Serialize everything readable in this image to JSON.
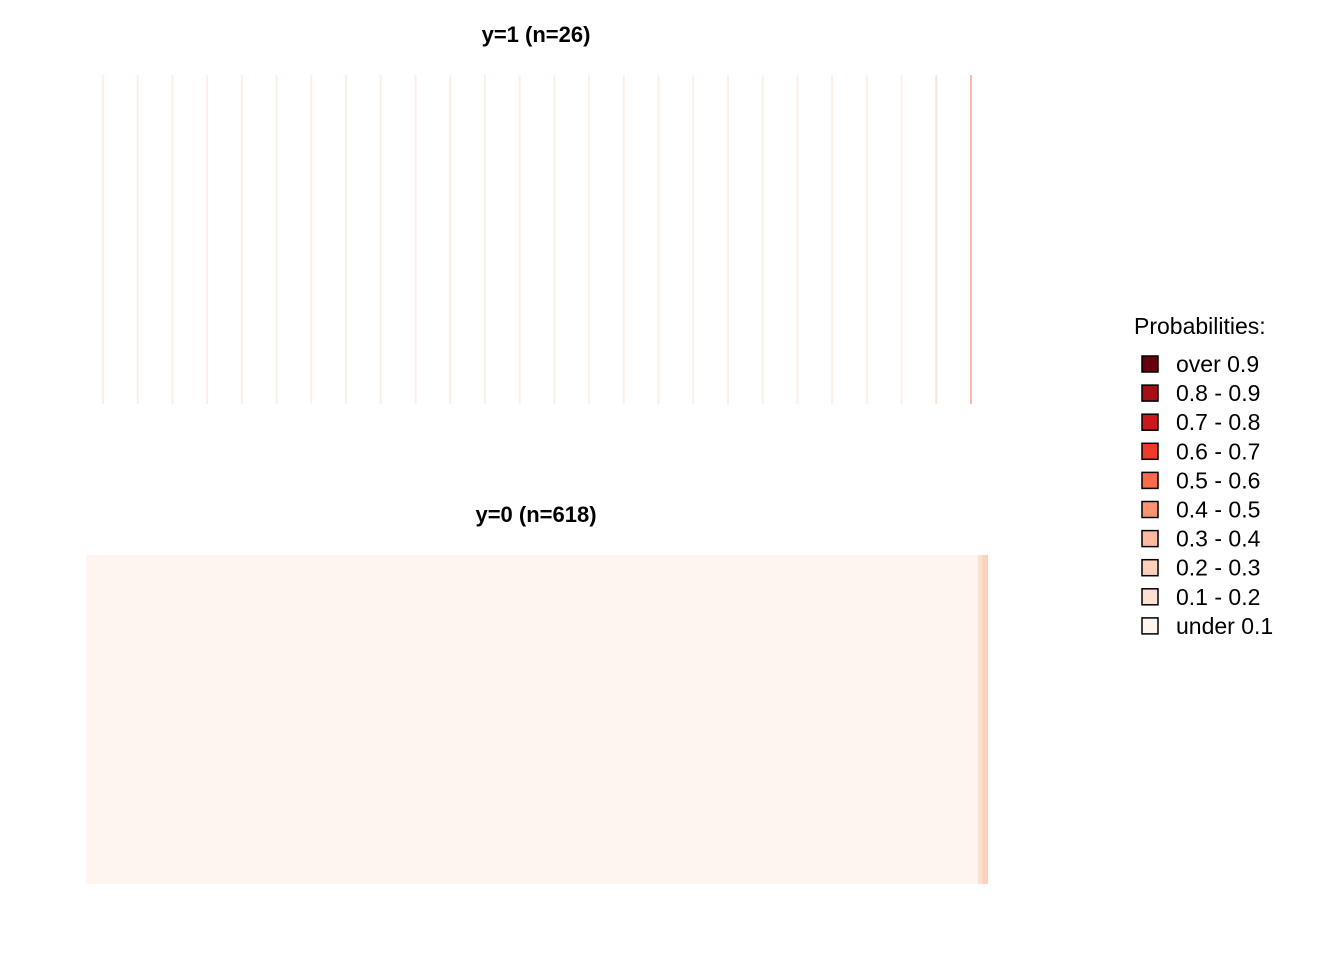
{
  "chart_data": [
    {
      "type": "heatmap",
      "title": "y=1 (n=26)",
      "n": 26,
      "probability_bins": [
        "under 0.1",
        "under 0.1",
        "under 0.1",
        "under 0.1",
        "under 0.1",
        "under 0.1",
        "under 0.1",
        "under 0.1",
        "under 0.1",
        "under 0.1",
        "under 0.1",
        "under 0.1",
        "under 0.1",
        "under 0.1",
        "under 0.1",
        "under 0.1",
        "under 0.1",
        "under 0.1",
        "under 0.1",
        "under 0.1",
        "under 0.1",
        "under 0.1",
        "under 0.1",
        "under 0.1",
        "0.1 - 0.2",
        "0.3 - 0.4"
      ],
      "xlabel": "",
      "ylabel": ""
    },
    {
      "type": "heatmap",
      "title": "y=0 (n=618)",
      "n": 618,
      "bin_counts": {
        "under 0.1": 611,
        "0.1 - 0.2": 3,
        "0.2 - 0.3": 4
      },
      "xlabel": "",
      "ylabel": ""
    }
  ],
  "legend": {
    "title": "Probabilities:",
    "items": [
      {
        "label": "over 0.9",
        "color": "#67000d"
      },
      {
        "label": "0.8 - 0.9",
        "color": "#a50f15"
      },
      {
        "label": "0.7 - 0.8",
        "color": "#cb181d"
      },
      {
        "label": "0.6 - 0.7",
        "color": "#ef3b2c"
      },
      {
        "label": "0.5 - 0.6",
        "color": "#fb6a4a"
      },
      {
        "label": "0.4 - 0.5",
        "color": "#fc9272"
      },
      {
        "label": "0.3 - 0.4",
        "color": "#fcbba1"
      },
      {
        "label": "0.2 - 0.3",
        "color": "#fdd0bc"
      },
      {
        "label": "0.1 - 0.2",
        "color": "#fee0d2"
      },
      {
        "label": "under 0.1",
        "color": "#fff5f0"
      }
    ]
  },
  "stroke_colors": {
    "under 0.1": "#fdeee8",
    "0.1 - 0.2": "#fbe1d6",
    "0.2 - 0.3": "#fcc5ae",
    "0.3 - 0.4": "#f9b9a4"
  }
}
